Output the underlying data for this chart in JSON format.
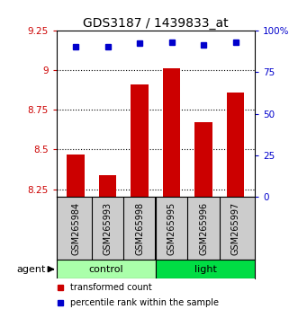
{
  "title": "GDS3187 / 1439833_at",
  "samples": [
    "GSM265984",
    "GSM265993",
    "GSM265998",
    "GSM265995",
    "GSM265996",
    "GSM265997"
  ],
  "bar_values": [
    8.47,
    8.34,
    8.91,
    9.01,
    8.67,
    8.86
  ],
  "dot_values": [
    90,
    90,
    92,
    93,
    91,
    93
  ],
  "bar_color": "#cc0000",
  "dot_color": "#0000cc",
  "ylim_left": [
    8.2,
    9.25
  ],
  "ylim_right": [
    0,
    100
  ],
  "yticks_left": [
    8.25,
    8.5,
    8.75,
    9.0,
    9.25
  ],
  "ytick_labels_left": [
    "8.25",
    "8.5",
    "8.75",
    "9",
    "9.25"
  ],
  "yticks_right": [
    0,
    25,
    50,
    75,
    100
  ],
  "ytick_labels_right": [
    "0",
    "25",
    "50",
    "75",
    "100%"
  ],
  "groups": [
    {
      "label": "control",
      "color": "#aaffaa"
    },
    {
      "label": "light",
      "color": "#00dd44"
    }
  ],
  "agent_label": "agent",
  "legend_items": [
    {
      "label": "transformed count",
      "color": "#cc0000"
    },
    {
      "label": "percentile rank within the sample",
      "color": "#0000cc"
    }
  ],
  "bar_bottom": 8.2,
  "bg_plot": "#ffffff",
  "bg_sample_row": "#cccccc",
  "bar_width": 0.55
}
